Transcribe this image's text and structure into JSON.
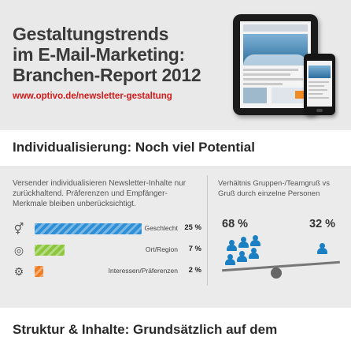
{
  "header": {
    "title_lines": [
      "Gestaltungstrends",
      "im E-Mail-Marketing:",
      "Branchen-Report 2012"
    ],
    "url": "www.optivo.de/newsletter-gestaltung"
  },
  "section1": {
    "title": "Individualisierung: Noch viel Potential",
    "left_description": "Versender individualisieren Newsletter-Inhalte nur zurückhaltend. Präferenzen und Empfänger-Merkmale bleiben unberücksichtigt.",
    "right_description": "Verhältnis Gruppen-/Teamgruß vs Gruß durch einzelne Personen"
  },
  "chart_data": [
    {
      "type": "bar",
      "orientation": "horizontal",
      "categories": [
        "Geschlecht",
        "Ort/Region",
        "Interessen/Präferenzen"
      ],
      "values": [
        25,
        7,
        2
      ],
      "value_labels": [
        "25 %",
        "7 %",
        "2 %"
      ],
      "colors": [
        "#2f8fd6",
        "#8cc63f",
        "#f07c22"
      ],
      "icons": [
        "gender-icon",
        "globe-icon",
        "gear-icon"
      ],
      "xlim": [
        0,
        25
      ]
    },
    {
      "type": "pie",
      "categories": [
        "group-greeting",
        "individual-greeting"
      ],
      "values": [
        68,
        32
      ],
      "value_labels": [
        "68 %",
        "32 %"
      ],
      "people": [
        7,
        1
      ],
      "colors": [
        "#1b7fc4",
        "#1b7fc4"
      ]
    }
  ],
  "section2": {
    "title": "Struktur & Inhalte: Grundsätzlich auf dem"
  }
}
